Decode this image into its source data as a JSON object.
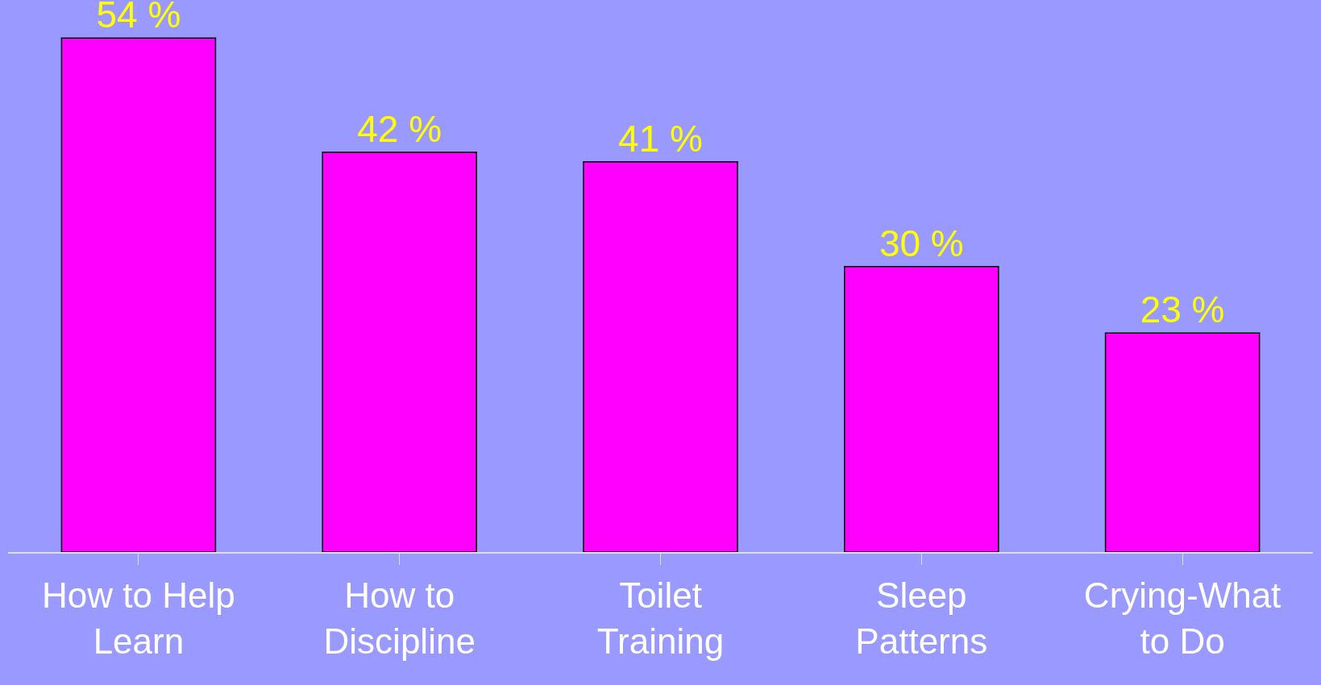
{
  "chart_data": {
    "type": "bar",
    "categories": [
      "How to Help Learn",
      "How to Discipline",
      "Toilet Training",
      "Sleep Patterns",
      "Crying-What to Do"
    ],
    "values": [
      54,
      42,
      41,
      30,
      23
    ],
    "value_labels": [
      "54 %",
      "42 %",
      "41 %",
      "30 %",
      "23 %"
    ],
    "color": "#ff00ff",
    "ylim": [
      0,
      58
    ],
    "tick_labels": "x",
    "grid": false,
    "legend": false
  }
}
